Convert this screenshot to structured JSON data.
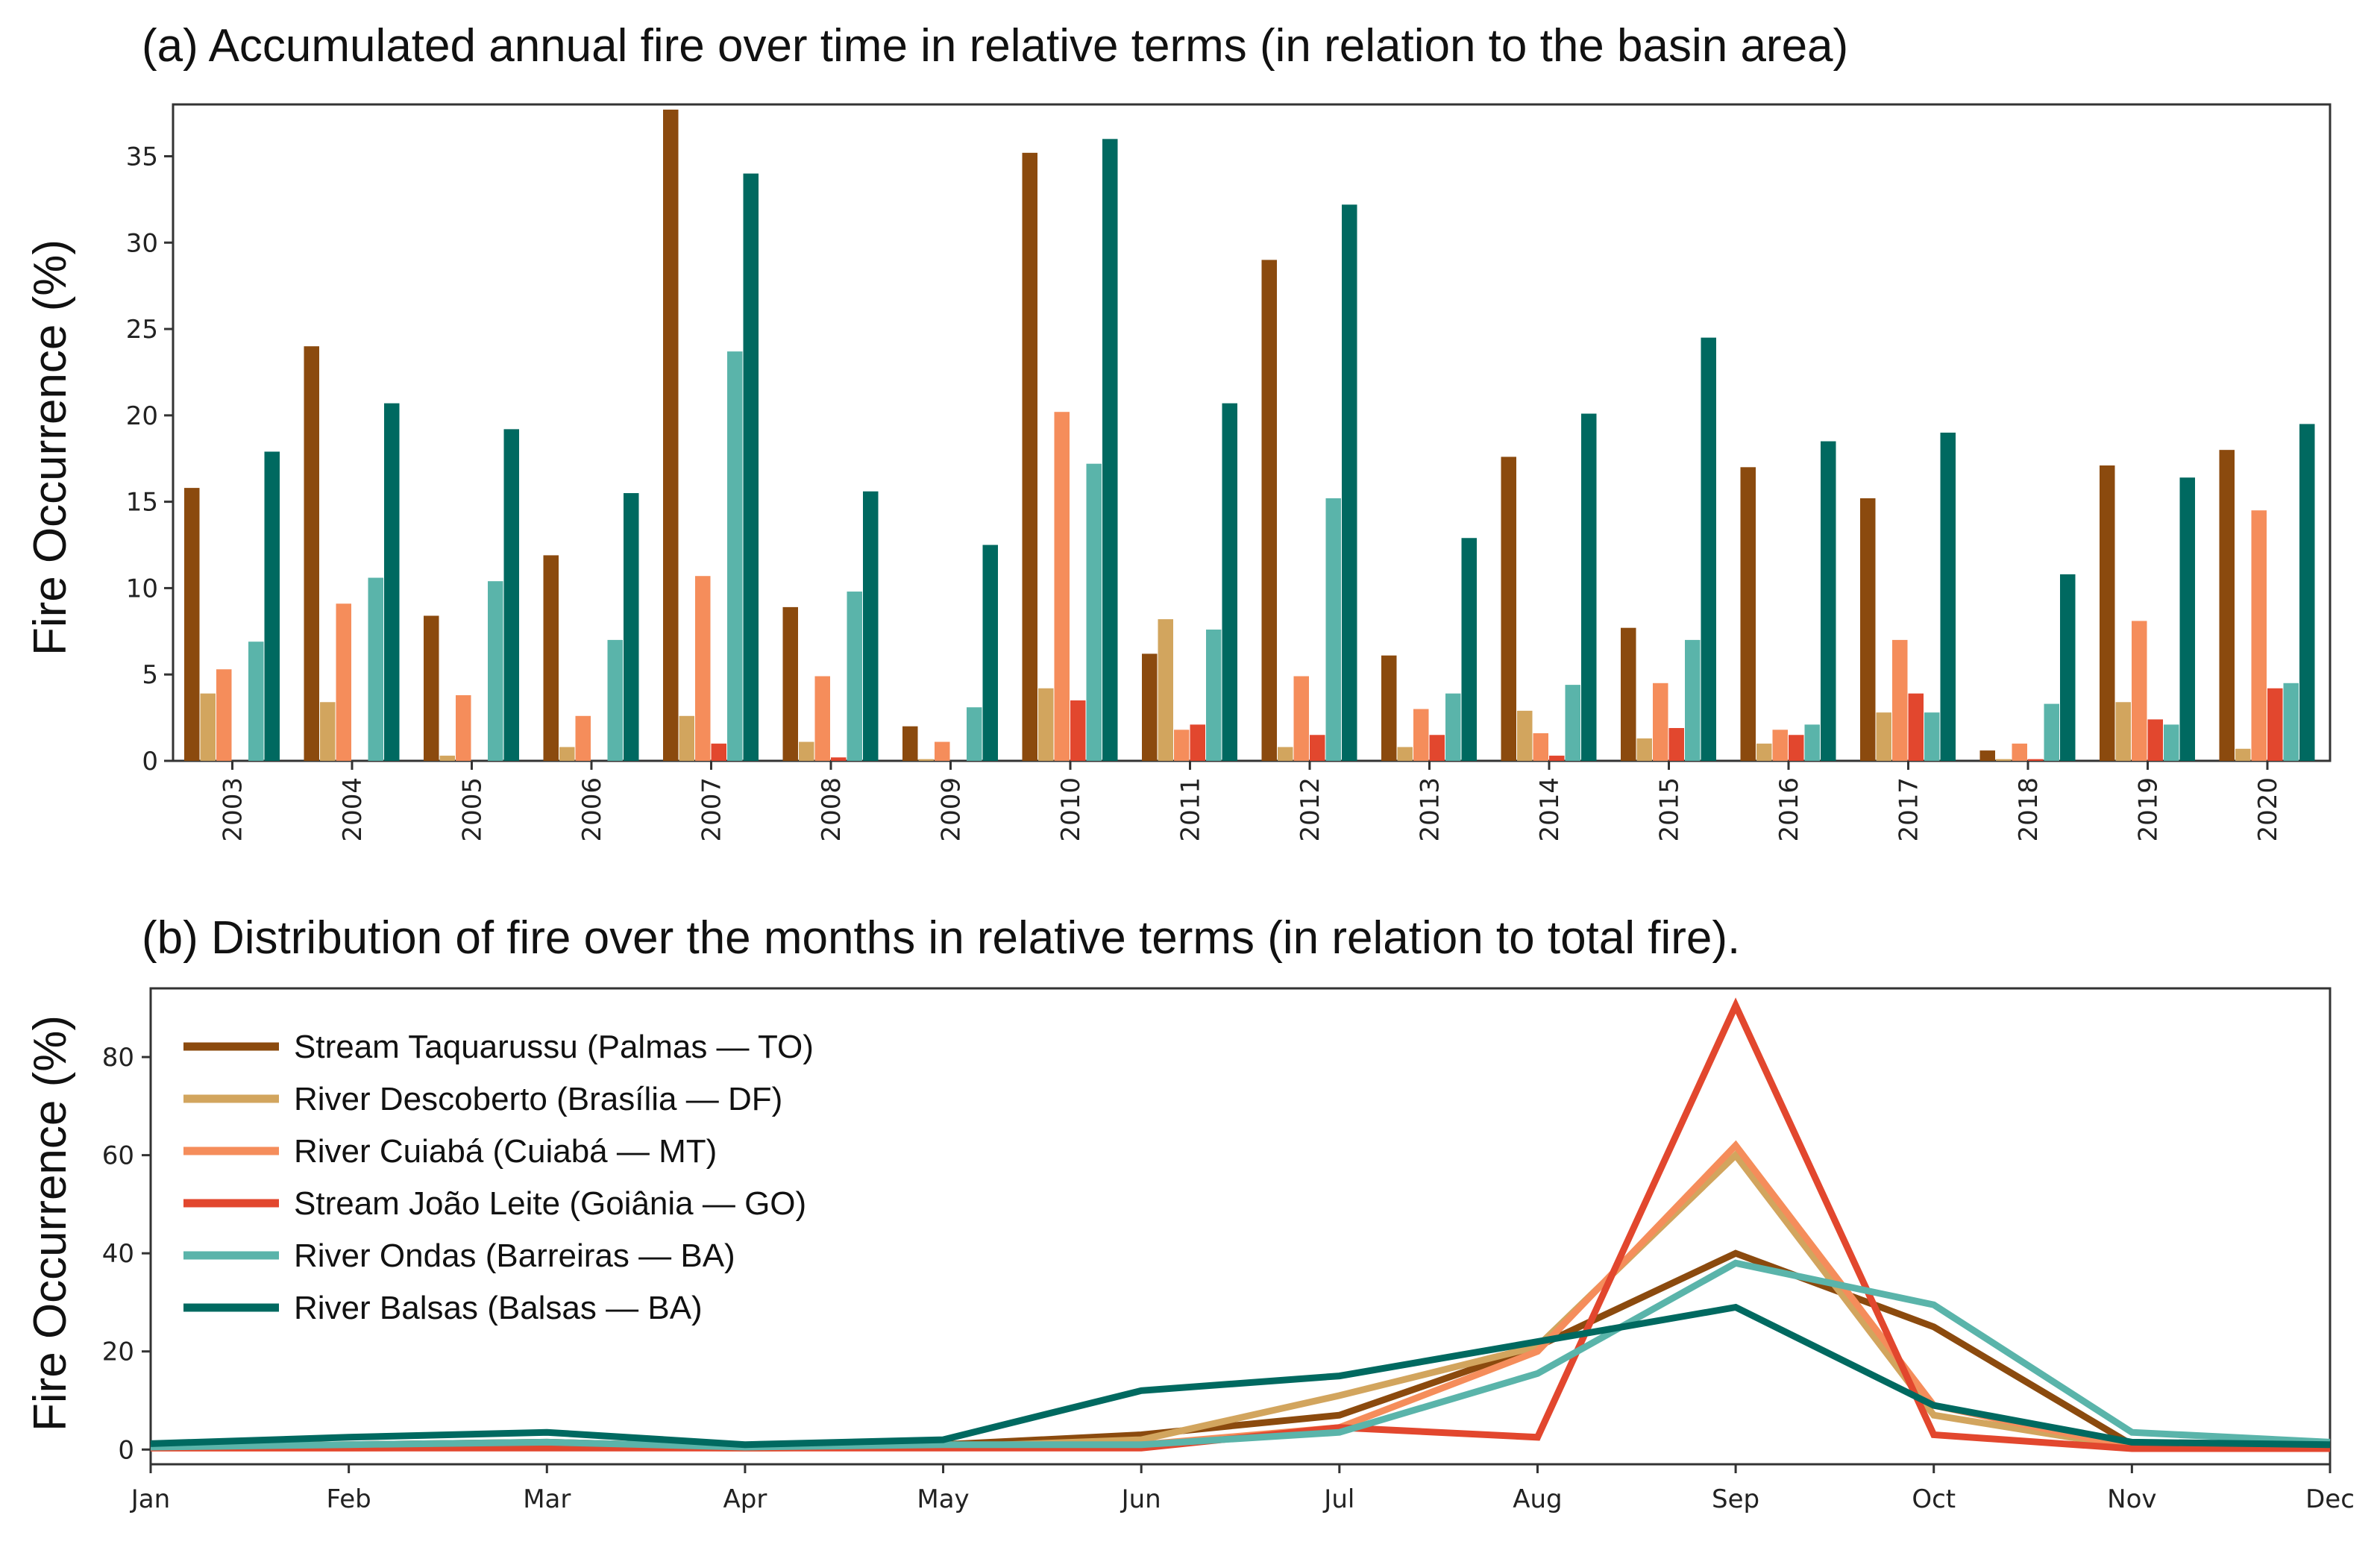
{
  "chart_data": [
    {
      "type": "bar",
      "title": "(a) Accumulated annual fire over time in relative terms (in relation to the basin area)",
      "ylabel": "Fire Occurrence (%)",
      "xlabel": "",
      "ylim": [
        0,
        38
      ],
      "yticks": [
        0,
        5,
        10,
        15,
        20,
        25,
        30,
        35
      ],
      "categories": [
        "2003",
        "2004",
        "2005",
        "2006",
        "2007",
        "2008",
        "2009",
        "2010",
        "2011",
        "2012",
        "2013",
        "2014",
        "2015",
        "2016",
        "2017",
        "2018",
        "2019",
        "2020"
      ],
      "series": [
        {
          "name": "Stream Taquarussu (Palmas — TO)",
          "color": "#8B4A0E",
          "values": [
            15.8,
            24.0,
            8.4,
            11.9,
            37.7,
            8.9,
            2.0,
            35.2,
            6.2,
            29.0,
            6.1,
            17.6,
            7.7,
            17.0,
            15.2,
            0.6,
            17.1,
            18.0
          ]
        },
        {
          "name": "River Descoberto (Brasília — DF)",
          "color": "#D2A55E",
          "values": [
            3.9,
            3.4,
            0.3,
            0.8,
            2.6,
            1.1,
            0.1,
            4.2,
            8.2,
            0.8,
            0.8,
            2.9,
            1.3,
            1.0,
            2.8,
            0.1,
            3.4,
            0.7
          ]
        },
        {
          "name": "River Cuiabá (Cuiabá — MT)",
          "color": "#F58D5B",
          "values": [
            5.3,
            9.1,
            3.8,
            2.6,
            10.7,
            4.9,
            1.1,
            20.2,
            1.8,
            4.9,
            3.0,
            1.6,
            4.5,
            1.8,
            7.0,
            1.0,
            8.1,
            14.5
          ]
        },
        {
          "name": "Stream João Leite (Goiânia — GO)",
          "color": "#E2472E",
          "values": [
            0.0,
            0.0,
            0.0,
            0.0,
            1.0,
            0.2,
            0.0,
            3.5,
            2.1,
            1.5,
            1.5,
            0.3,
            1.9,
            1.5,
            3.9,
            0.1,
            2.4,
            4.2
          ]
        },
        {
          "name": "River Ondas (Barreiras — BA)",
          "color": "#5AB4AA",
          "values": [
            6.9,
            10.6,
            10.4,
            7.0,
            23.7,
            9.8,
            3.1,
            17.2,
            7.6,
            15.2,
            3.9,
            4.4,
            7.0,
            2.1,
            2.8,
            3.3,
            2.1,
            4.5
          ]
        },
        {
          "name": "River Balsas (Balsas — BA)",
          "color": "#006960",
          "values": [
            17.9,
            20.7,
            19.2,
            15.5,
            34.0,
            15.6,
            12.5,
            36.0,
            20.7,
            32.2,
            12.9,
            20.1,
            24.5,
            18.5,
            19.0,
            10.8,
            16.4,
            19.5
          ]
        }
      ]
    },
    {
      "type": "line",
      "title": "(b) Distribution of fire over the months in relative terms (in relation to total fire).",
      "ylabel": "Fire Occurrence (%)",
      "xlabel": "",
      "ylim": [
        -3,
        94
      ],
      "yticks": [
        0,
        20,
        40,
        60,
        80
      ],
      "categories": [
        "Jan",
        "Feb",
        "Mar",
        "Apr",
        "May",
        "Jun",
        "Jul",
        "Aug",
        "Sep",
        "Oct",
        "Nov",
        "Dec"
      ],
      "legend_position": "upper-left",
      "series": [
        {
          "name": "Stream Taquarussu (Palmas — TO)",
          "color": "#8B4A0E",
          "values": [
            0.5,
            1.0,
            1.5,
            0.5,
            1.0,
            3.0,
            7.0,
            21.0,
            40.0,
            25.0,
            1.0,
            0.5
          ]
        },
        {
          "name": "River Descoberto (Brasília — DF)",
          "color": "#D2A55E",
          "values": [
            0.5,
            0.5,
            0.5,
            0.3,
            0.5,
            2.0,
            11.0,
            21.0,
            60.0,
            7.0,
            0.5,
            0.3
          ]
        },
        {
          "name": "River Cuiabá (Cuiabá — MT)",
          "color": "#F58D5B",
          "values": [
            0.3,
            0.3,
            0.5,
            0.3,
            0.5,
            1.0,
            4.5,
            20.0,
            62.0,
            9.0,
            0.5,
            0.3
          ]
        },
        {
          "name": "Stream João Leite (Goiânia — GO)",
          "color": "#E2472E",
          "values": [
            0.3,
            0.3,
            0.3,
            0.3,
            0.3,
            0.3,
            4.5,
            2.5,
            90.5,
            3.0,
            0.2,
            0.2
          ]
        },
        {
          "name": "River Ondas (Barreiras — BA)",
          "color": "#5AB4AA",
          "values": [
            0.5,
            1.0,
            1.5,
            0.5,
            1.0,
            1.0,
            3.5,
            15.5,
            38.0,
            29.5,
            3.5,
            1.5
          ]
        },
        {
          "name": "River Balsas (Balsas — BA)",
          "color": "#006960",
          "values": [
            1.2,
            2.5,
            3.5,
            1.0,
            2.0,
            12.0,
            15.0,
            22.0,
            29.0,
            9.0,
            1.5,
            1.0
          ]
        }
      ]
    }
  ]
}
